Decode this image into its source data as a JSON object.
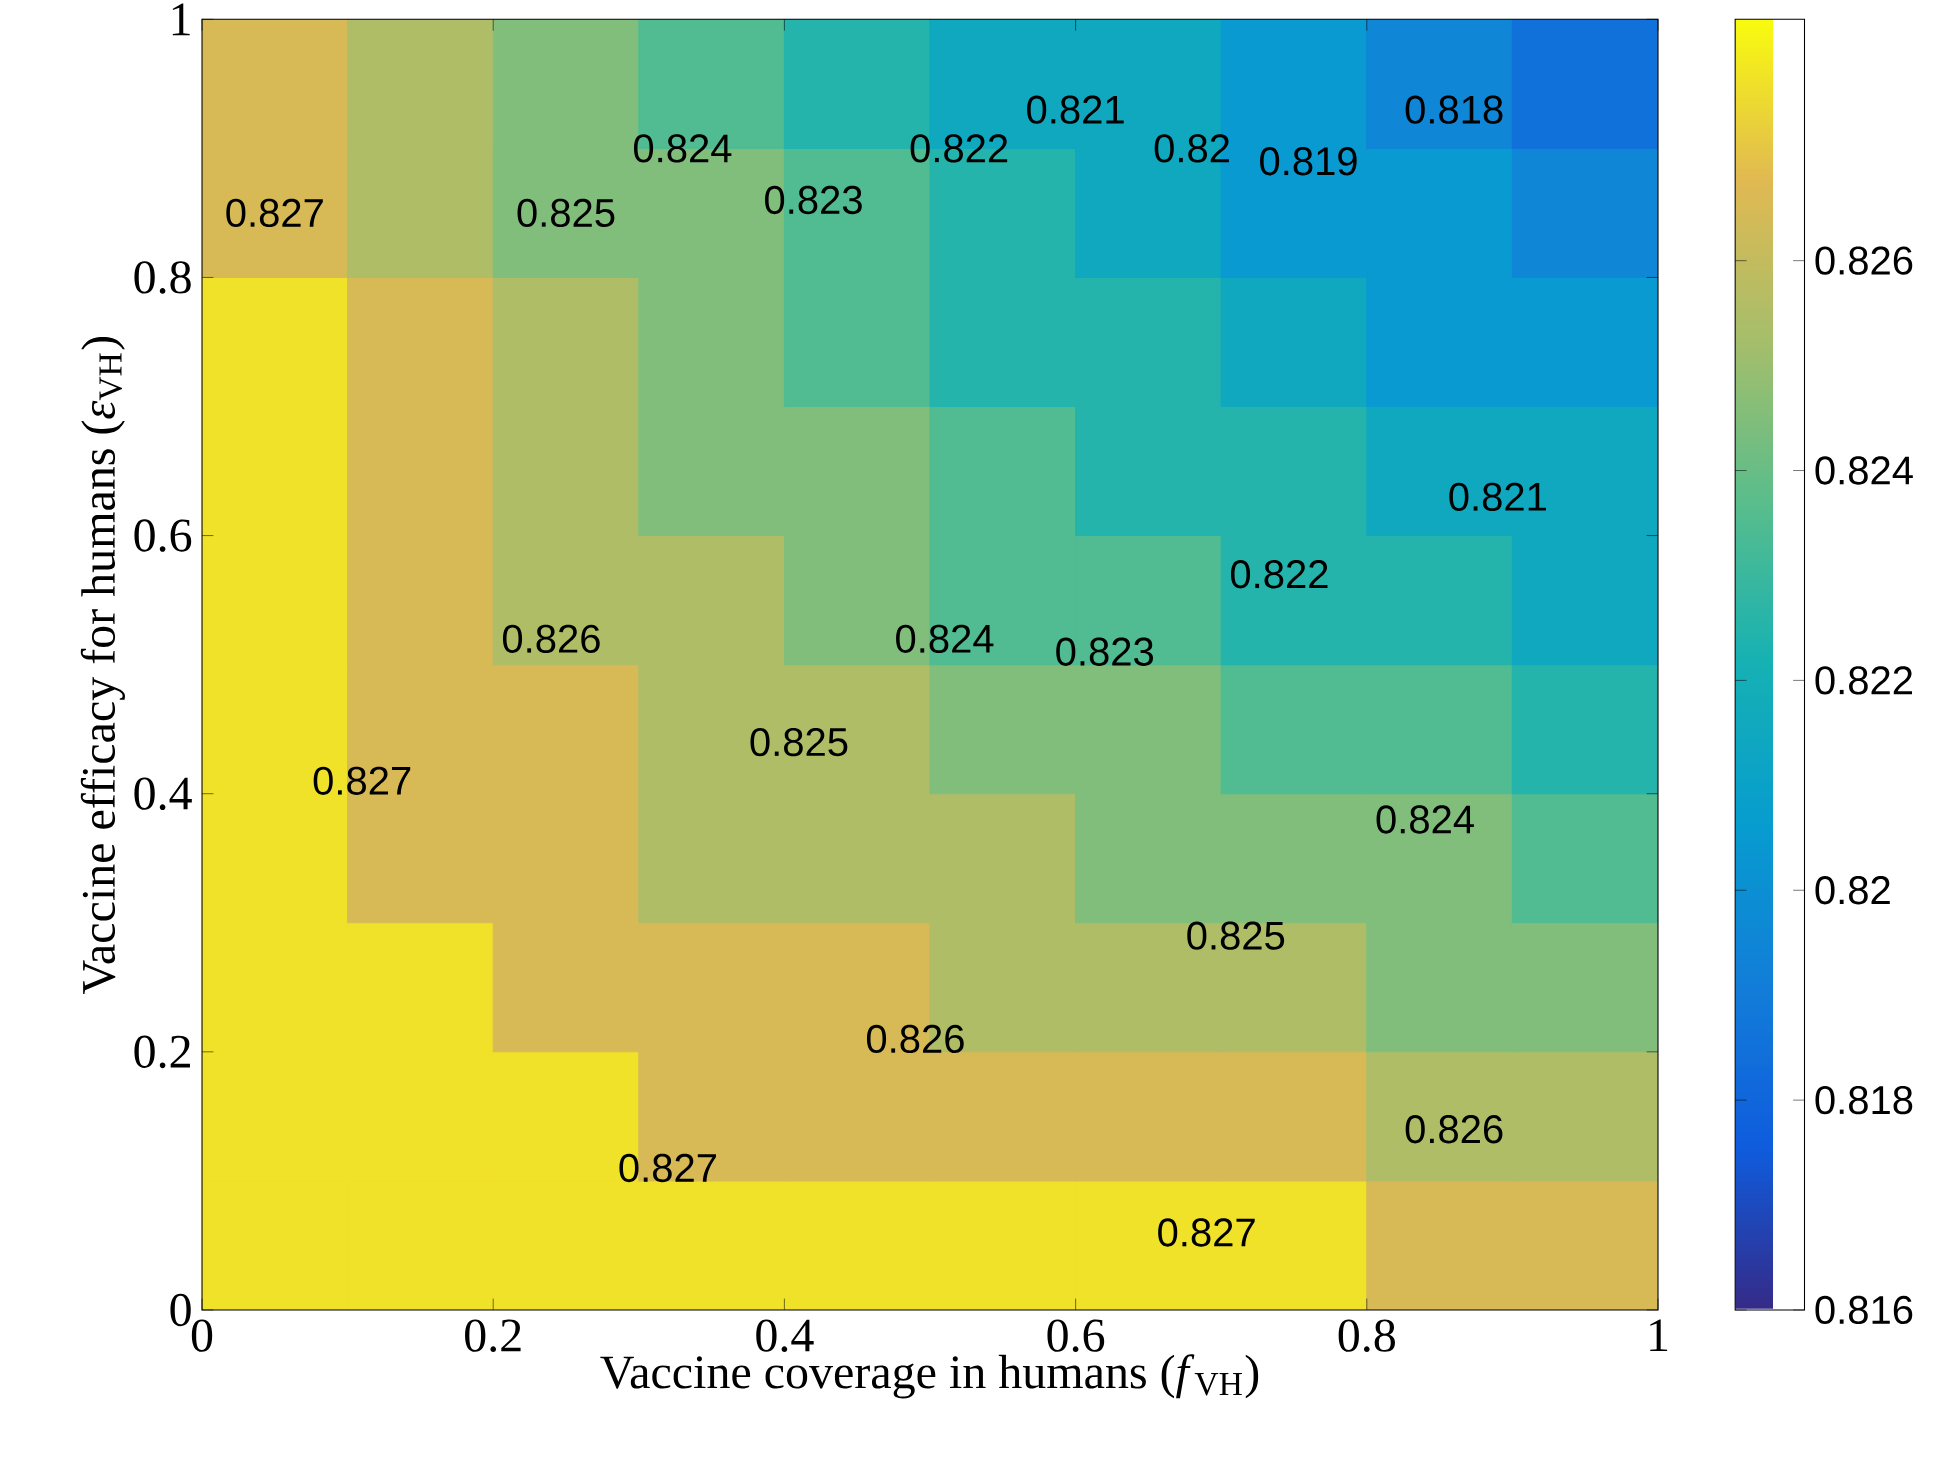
{
  "chart_data": {
    "type": "heatmap",
    "xlabel": "Vaccine coverage in humans (*f*$_{VH}$)",
    "ylabel": "Vaccine efficacy for humans (*ε*$_{VH}$)",
    "x": [
      0.05,
      0.15,
      0.25,
      0.35,
      0.45,
      0.55,
      0.65,
      0.75,
      0.85,
      0.95
    ],
    "y": [
      0.95,
      0.85,
      0.75,
      0.65,
      0.55,
      0.45,
      0.35,
      0.25,
      0.15,
      0.05
    ],
    "xlim": [
      0,
      1
    ],
    "ylim": [
      0,
      1
    ],
    "xticks": [
      0,
      0.2,
      0.4,
      0.6,
      0.8,
      1
    ],
    "yticks": [
      0,
      0.2,
      0.4,
      0.6,
      0.8,
      1
    ],
    "clim": [
      0.816,
      0.8283
    ],
    "cticks": [
      0.816,
      0.818,
      0.82,
      0.822,
      0.824,
      0.826
    ],
    "cells": [
      [
        0.8265,
        0.8255,
        0.8245,
        0.8235,
        0.8225,
        0.8215,
        0.8215,
        0.8205,
        0.8195,
        0.8185
      ],
      [
        0.8265,
        0.8255,
        0.8245,
        0.8245,
        0.8235,
        0.8225,
        0.8215,
        0.8205,
        0.8205,
        0.8195
      ],
      [
        0.8277,
        0.8265,
        0.8255,
        0.8245,
        0.8235,
        0.8225,
        0.8225,
        0.8215,
        0.8205,
        0.8205
      ],
      [
        0.8277,
        0.8265,
        0.8255,
        0.8245,
        0.8245,
        0.8235,
        0.8225,
        0.8225,
        0.8215,
        0.8215
      ],
      [
        0.8277,
        0.8265,
        0.8255,
        0.8255,
        0.8245,
        0.8235,
        0.8235,
        0.8225,
        0.8225,
        0.8215
      ],
      [
        0.8277,
        0.8265,
        0.8265,
        0.8255,
        0.8255,
        0.8245,
        0.8245,
        0.8235,
        0.8235,
        0.8225
      ],
      [
        0.8277,
        0.8265,
        0.8265,
        0.8255,
        0.8255,
        0.8255,
        0.8245,
        0.8245,
        0.8245,
        0.8235
      ],
      [
        0.8277,
        0.8277,
        0.8265,
        0.8265,
        0.8265,
        0.8255,
        0.8255,
        0.8255,
        0.8245,
        0.8245
      ],
      [
        0.8277,
        0.8277,
        0.8277,
        0.8265,
        0.8265,
        0.8265,
        0.8265,
        0.8265,
        0.8255,
        0.8255
      ],
      [
        0.8277,
        0.8277,
        0.8277,
        0.8277,
        0.8277,
        0.8277,
        0.8277,
        0.8277,
        0.8265,
        0.8265
      ]
    ],
    "annotations": [
      "0.827",
      "0.825",
      "0.824",
      "0.823",
      "0.822",
      "0.821",
      "0.82",
      "0.819",
      "0.818",
      "0.821",
      "0.822",
      "0.823",
      "0.824",
      "0.825",
      "0.826",
      "0.827",
      "0.824",
      "0.825",
      "0.826",
      "0.826",
      "0.827",
      "0.827"
    ]
  }
}
